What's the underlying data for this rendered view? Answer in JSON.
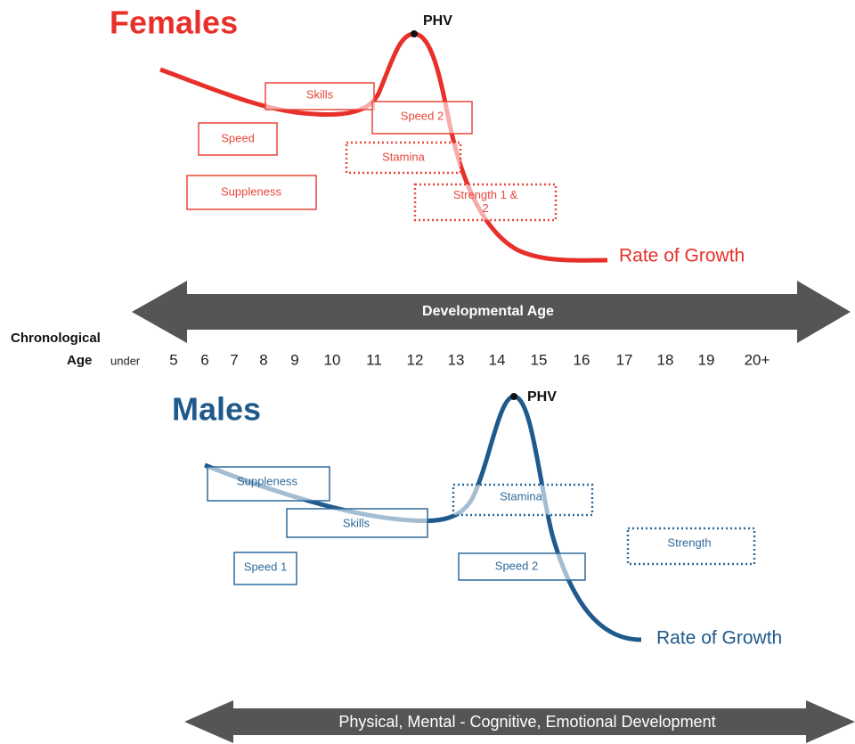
{
  "females": {
    "title": "Females",
    "peak": "PHV",
    "boxes": [
      "Skills",
      "Speed 2",
      "Speed",
      "Stamina",
      "Suppleness",
      "Strength 1 & 2"
    ],
    "curve_label": "Rate of Growth"
  },
  "developmental_arrow": "Developmental Age",
  "chronological": {
    "label": "Chronological",
    "age_label": "Age",
    "under": "under",
    "ages": [
      "5",
      "6",
      "7",
      "8",
      "9",
      "10",
      "11",
      "12",
      "13",
      "14",
      "15",
      "16",
      "17",
      "18",
      "19",
      "20+"
    ]
  },
  "males": {
    "title": "Males",
    "peak": "PHV",
    "boxes": [
      "Suppleness",
      "Stamina",
      "Skills",
      "Strength",
      "Speed 1",
      "Speed 2"
    ],
    "curve_label": "Rate of Growth"
  },
  "development_arrow": "Physical, Mental - Cognitive, Emotional Development"
}
